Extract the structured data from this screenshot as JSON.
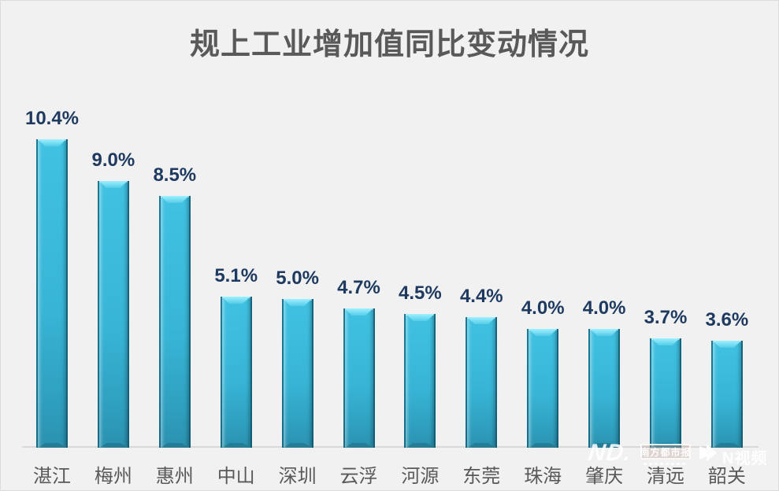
{
  "title": "规上工业增加值同比变动情况",
  "chart_data": {
    "type": "bar",
    "title": "规上工业增加值同比变动情况",
    "categories": [
      "湛江",
      "梅州",
      "惠州",
      "中山",
      "深圳",
      "云浮",
      "河源",
      "东莞",
      "珠海",
      "肇庆",
      "清远",
      "韶关"
    ],
    "values": [
      10.4,
      9.0,
      8.5,
      5.1,
      5.0,
      4.7,
      4.5,
      4.4,
      4.0,
      4.0,
      3.7,
      3.6
    ],
    "value_labels": [
      "10.4%",
      "9.0%",
      "8.5%",
      "5.1%",
      "5.0%",
      "4.7%",
      "4.5%",
      "4.4%",
      "4.0%",
      "4.0%",
      "3.7%",
      "3.6%"
    ],
    "unit": "%",
    "ylim": [
      0,
      11
    ],
    "grid": false,
    "legend": false,
    "xlabel": "",
    "ylabel": "",
    "bar_color": "#38B6D8"
  },
  "watermarks": {
    "nd_logo": "ND.",
    "newspaper": "南方都市报",
    "video_brand": "N视频",
    "play_icon": "play-triangle"
  },
  "colors": {
    "background": "#F1F1F1",
    "title": "#595959",
    "bar_body_top": "#41C2E2",
    "bar_body_bottom": "#2B91AF",
    "bar_bevel_light": "#9FF0FF",
    "value_label": "#1F3A60",
    "category_label": "#595959",
    "axis_line": "#D9D9D9",
    "watermark": "#FFFFFF"
  }
}
